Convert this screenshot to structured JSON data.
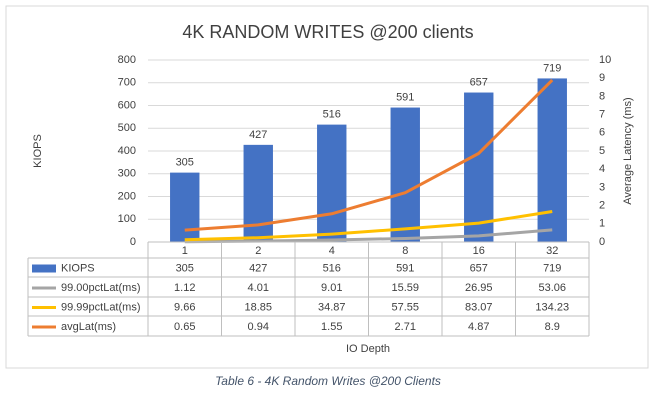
{
  "chart_data": {
    "type": "bar",
    "title": "4K RANDOM WRITES @200 clients",
    "x_label": "IO Depth",
    "y_label": "KIOPS",
    "y2_label": "Average Latency (ms)",
    "caption": "Table 6 - 4K Random Writes @200 Clients",
    "categories": [
      "1",
      "2",
      "4",
      "8",
      "16",
      "32"
    ],
    "series": [
      {
        "name": "KIOPS",
        "type": "bar",
        "color": "#4472c4",
        "values": [
          305,
          427,
          516,
          591,
          657,
          719
        ]
      },
      {
        "name": "99.00pctLat(ms)",
        "type": "line",
        "color": "#a5a5a5",
        "values": [
          1.12,
          4.01,
          9.01,
          15.59,
          26.95,
          53.06
        ]
      },
      {
        "name": "99.99pctLat(ms)",
        "type": "line",
        "color": "#ffc000",
        "values": [
          9.66,
          18.85,
          34.87,
          57.55,
          83.07,
          134.23
        ]
      },
      {
        "name": "avgLat(ms)",
        "type": "line",
        "color": "#ed7d31",
        "axis": "y2",
        "values": [
          0.65,
          0.94,
          1.55,
          2.71,
          4.87,
          8.9
        ]
      }
    ],
    "ylim": [
      0,
      800
    ],
    "yticks": [
      0,
      100,
      200,
      300,
      400,
      500,
      600,
      700,
      800
    ],
    "y2lim": [
      0,
      10
    ],
    "y2ticks": [
      0,
      1,
      2,
      3,
      4,
      5,
      6,
      7,
      8,
      9,
      10
    ],
    "grid": true
  }
}
